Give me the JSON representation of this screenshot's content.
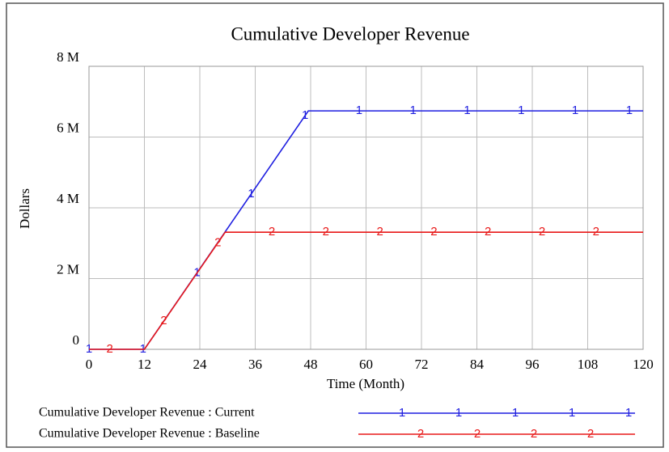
{
  "chart_data": {
    "type": "line",
    "title": "Cumulative Developer Revenue",
    "x_label": "Time (Month)",
    "y_label": "Dollars",
    "xlim": [
      0,
      120
    ],
    "xticks": [
      0,
      12,
      24,
      36,
      48,
      60,
      72,
      84,
      96,
      108,
      120
    ],
    "ylim": [
      0,
      8000000
    ],
    "yticks": [
      0,
      {
        "value": 2000000,
        "label": "2 M"
      },
      {
        "value": 4000000,
        "label": "4 M"
      },
      {
        "value": 6000000,
        "label": "6 M"
      },
      {
        "value": 8000000,
        "label": "8 M"
      }
    ],
    "grid": true,
    "series": [
      {
        "name": "Cumulative Developer Revenue : Current",
        "marker": "1",
        "color": "#1f1fe0",
        "x": [
          0,
          12,
          47.5,
          120
        ],
        "values": [
          0,
          0,
          6740000,
          6740000
        ]
      },
      {
        "name": "Cumulative Developer Revenue : Baseline",
        "marker": "2",
        "color": "#e81818",
        "x": [
          0,
          12,
          29.5,
          120
        ],
        "values": [
          0,
          0,
          3310000,
          3310000
        ]
      }
    ]
  }
}
